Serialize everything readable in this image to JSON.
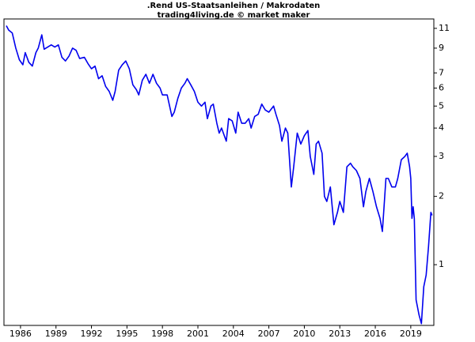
{
  "chart_data": {
    "type": "line",
    "title": ".Rend US-Staatsanleihen / Makrodaten",
    "subtitle": "trading4living.de © market maker",
    "log_scale": true,
    "xlim": [
      1984.6,
      2020.95
    ],
    "xticks": [
      1986,
      1989,
      1992,
      1995,
      1998,
      2001,
      2004,
      2007,
      2010,
      2013,
      2016,
      2019
    ],
    "ylim": [
      0.54,
      12.1
    ],
    "yticks": [
      1,
      2,
      3,
      4,
      5,
      6,
      7,
      9,
      11
    ],
    "series": [
      {
        "color": "#0000ee",
        "x": [
          1984.8,
          1985.0,
          1985.3,
          1985.6,
          1985.9,
          1986.2,
          1986.4,
          1986.7,
          1987.0,
          1987.3,
          1987.5,
          1987.8,
          1988.0,
          1988.3,
          1988.6,
          1988.9,
          1989.2,
          1989.5,
          1989.8,
          1990.1,
          1990.4,
          1990.7,
          1991.0,
          1991.4,
          1991.7,
          1992.0,
          1992.3,
          1992.6,
          1992.9,
          1993.2,
          1993.5,
          1993.8,
          1994.0,
          1994.3,
          1994.6,
          1994.9,
          1995.2,
          1995.5,
          1995.8,
          1996.0,
          1996.3,
          1996.6,
          1996.9,
          1997.2,
          1997.5,
          1997.8,
          1998.0,
          1998.4,
          1998.8,
          1999.0,
          1999.3,
          1999.6,
          1999.9,
          2000.1,
          2000.4,
          2000.7,
          2001.0,
          2001.3,
          2001.6,
          2001.8,
          2002.1,
          2002.3,
          2002.6,
          2002.8,
          2003.0,
          2003.4,
          2003.6,
          2003.9,
          2004.2,
          2004.4,
          2004.7,
          2005.0,
          2005.3,
          2005.5,
          2005.8,
          2006.1,
          2006.4,
          2006.7,
          2007.0,
          2007.4,
          2007.6,
          2007.9,
          2008.1,
          2008.4,
          2008.6,
          2008.9,
          2009.1,
          2009.4,
          2009.7,
          2010.0,
          2010.3,
          2010.5,
          2010.8,
          2011.0,
          2011.2,
          2011.5,
          2011.7,
          2011.9,
          2012.2,
          2012.5,
          2012.8,
          2013.0,
          2013.3,
          2013.6,
          2013.9,
          2014.1,
          2014.4,
          2014.7,
          2015.0,
          2015.2,
          2015.5,
          2015.8,
          2016.1,
          2016.4,
          2016.6,
          2016.9,
          2017.1,
          2017.4,
          2017.7,
          2017.9,
          2018.2,
          2018.5,
          2018.7,
          2018.9,
          2019.0,
          2019.1,
          2019.2,
          2019.3,
          2019.45,
          2019.7,
          2019.9,
          2020.1,
          2020.3,
          2020.5,
          2020.7,
          2020.8
        ],
        "values": [
          11.3,
          10.8,
          10.5,
          9.0,
          8.0,
          7.6,
          8.6,
          7.8,
          7.5,
          8.6,
          9.0,
          10.3,
          8.9,
          9.1,
          9.3,
          9.1,
          9.3,
          8.2,
          7.9,
          8.3,
          9.0,
          8.8,
          8.1,
          8.2,
          7.7,
          7.3,
          7.5,
          6.6,
          6.8,
          6.1,
          5.8,
          5.3,
          5.8,
          7.2,
          7.6,
          7.9,
          7.3,
          6.2,
          5.9,
          5.6,
          6.5,
          6.9,
          6.3,
          6.9,
          6.3,
          6.0,
          5.6,
          5.6,
          4.5,
          4.7,
          5.4,
          6.0,
          6.3,
          6.6,
          6.2,
          5.8,
          5.2,
          5.0,
          5.2,
          4.4,
          5.0,
          5.1,
          4.2,
          3.8,
          4.0,
          3.5,
          4.4,
          4.3,
          3.8,
          4.7,
          4.2,
          4.2,
          4.4,
          4.0,
          4.5,
          4.6,
          5.1,
          4.8,
          4.7,
          5.0,
          4.6,
          4.1,
          3.5,
          4.0,
          3.8,
          2.2,
          2.7,
          3.8,
          3.4,
          3.7,
          3.9,
          3.0,
          2.5,
          3.4,
          3.5,
          3.1,
          2.0,
          1.9,
          2.2,
          1.5,
          1.7,
          1.9,
          1.7,
          2.7,
          2.8,
          2.7,
          2.6,
          2.4,
          1.8,
          2.1,
          2.4,
          2.1,
          1.8,
          1.6,
          1.4,
          2.4,
          2.4,
          2.2,
          2.2,
          2.4,
          2.9,
          3.0,
          3.1,
          2.7,
          2.4,
          1.6,
          1.8,
          1.6,
          0.7,
          0.6,
          0.55,
          0.8,
          0.9,
          1.2,
          1.7,
          1.65
        ]
      }
    ]
  }
}
